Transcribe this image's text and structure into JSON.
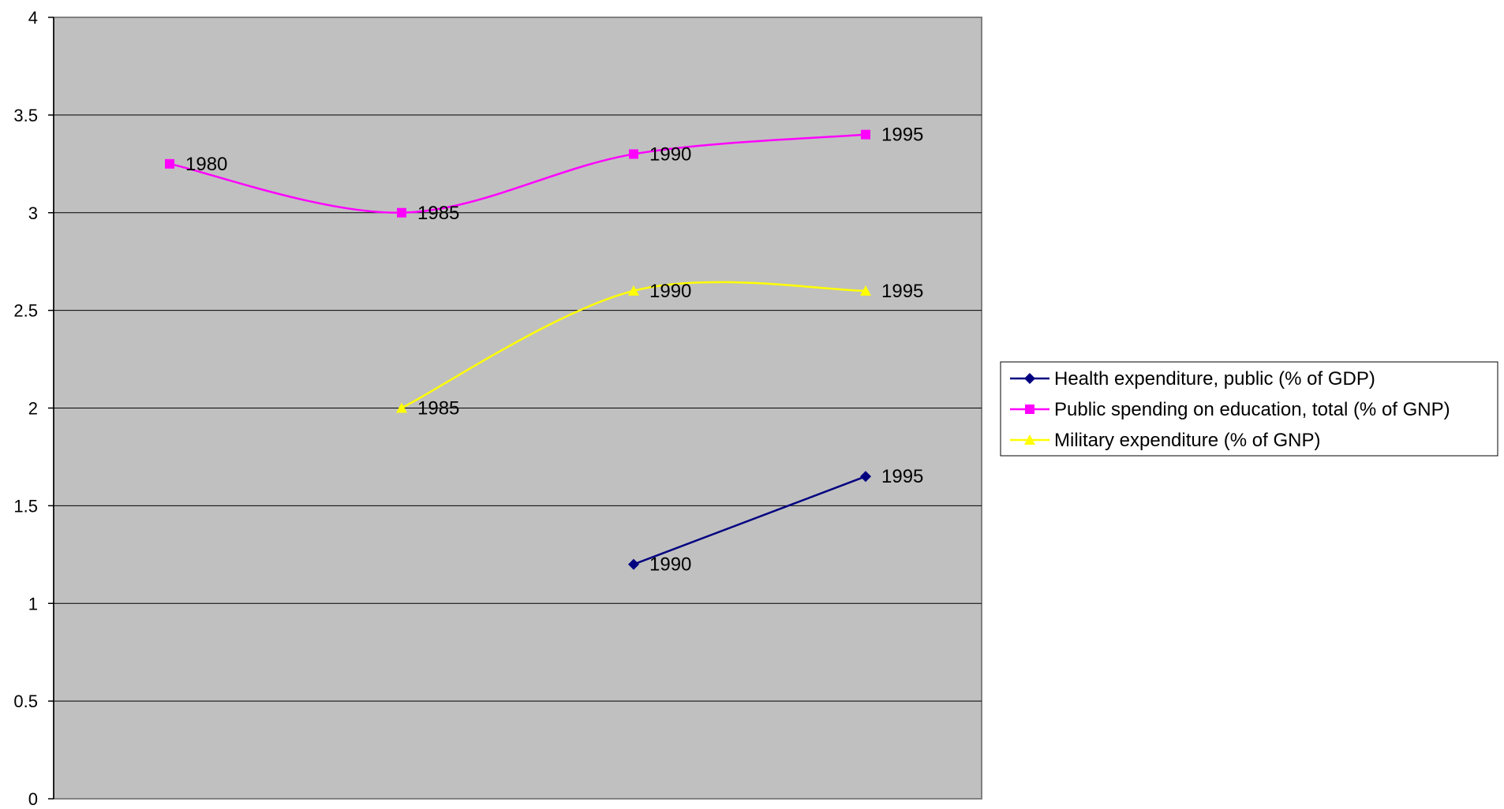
{
  "chart_data": {
    "type": "line",
    "title": "",
    "xlabel": "",
    "ylabel": "",
    "x": [
      1980,
      1985,
      1990,
      1995
    ],
    "ylim": [
      0,
      4
    ],
    "yticks": [
      "0",
      "0.5",
      "1",
      "1.5",
      "2",
      "2.5",
      "3",
      "3.5",
      "4"
    ],
    "grid": true,
    "plot_background": "#c0c0c0",
    "legend_position": "right",
    "series": [
      {
        "name": "Health expenditure, public (% of GDP)",
        "color": "#000080",
        "marker": "diamond",
        "smooth": false,
        "values": [
          null,
          null,
          1.2,
          1.65
        ],
        "labels": [
          null,
          null,
          "1990",
          "1995"
        ]
      },
      {
        "name": "Public spending on education, total (% of GNP)",
        "color": "#ff00ff",
        "marker": "square",
        "smooth": true,
        "values": [
          3.25,
          3.0,
          3.3,
          3.4
        ],
        "labels": [
          "1980",
          "1985",
          "1990",
          "1995"
        ]
      },
      {
        "name": "Military expenditure (% of GNP)",
        "color": "#ffff00",
        "marker": "triangle",
        "smooth": true,
        "values": [
          null,
          2.0,
          2.6,
          2.6
        ],
        "labels": [
          null,
          "1985",
          "1990",
          "1995"
        ]
      }
    ]
  }
}
